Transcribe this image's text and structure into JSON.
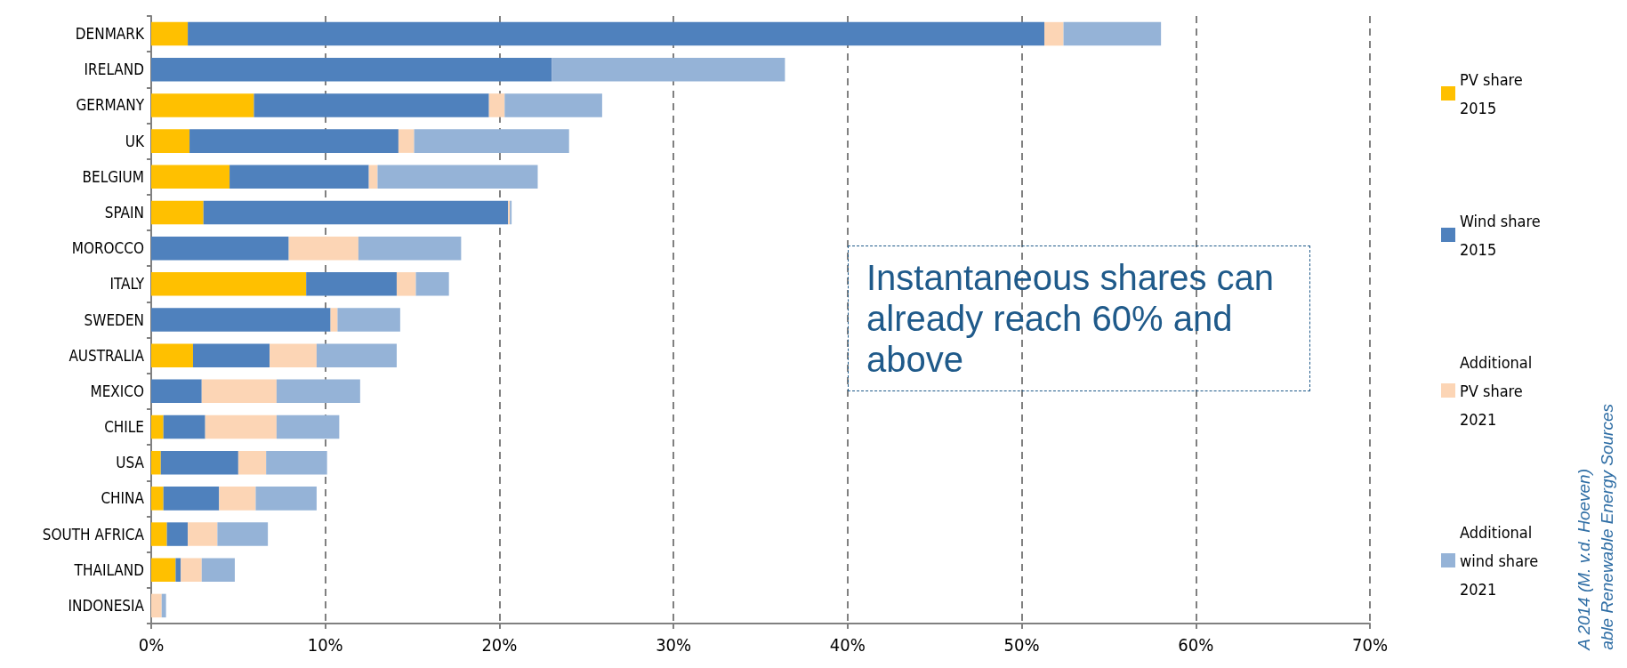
{
  "chart_data": {
    "type": "bar",
    "orientation": "horizontal",
    "stacked": true,
    "categories": [
      "DENMARK",
      "IRELAND",
      "GERMANY",
      "UK",
      "BELGIUM",
      "SPAIN",
      "MOROCCO",
      "ITALY",
      "SWEDEN",
      "AUSTRALIA",
      "MEXICO",
      "CHILE",
      "USA",
      "CHINA",
      "SOUTH AFRICA",
      "THAILAND",
      "INDONESIA"
    ],
    "series": [
      {
        "name": "PV share 2015",
        "color": "#ffc000",
        "values": [
          2.1,
          0,
          5.9,
          2.2,
          4.5,
          3.0,
          0,
          8.9,
          0,
          2.4,
          0,
          0.7,
          0.55,
          0.7,
          0.9,
          1.4,
          0
        ]
      },
      {
        "name": "Wind share 2015",
        "color": "#4f81bd",
        "values": [
          49.2,
          23.0,
          13.5,
          12.0,
          8.0,
          17.5,
          7.9,
          5.2,
          10.3,
          4.4,
          2.9,
          2.4,
          4.45,
          3.2,
          1.2,
          0.3,
          0
        ]
      },
      {
        "name": "Additional PV share 2021",
        "color": "#fcd5b5",
        "values": [
          1.1,
          0,
          0.9,
          0.9,
          0.5,
          0.1,
          4.0,
          1.1,
          0.4,
          2.7,
          4.3,
          4.1,
          1.6,
          2.1,
          1.7,
          1.2,
          0.6
        ]
      },
      {
        "name": "Additional wind share 2021",
        "color": "#95b3d7",
        "values": [
          5.6,
          13.4,
          5.6,
          8.9,
          9.2,
          0.1,
          5.9,
          1.9,
          3.6,
          4.6,
          4.8,
          3.6,
          3.5,
          3.5,
          2.9,
          1.9,
          0.25
        ]
      }
    ],
    "xlim": [
      0,
      70
    ],
    "xticks": [
      {
        "value": 0,
        "label": "0%"
      },
      {
        "value": 10,
        "label": "10%"
      },
      {
        "value": 20,
        "label": "20%"
      },
      {
        "value": 30,
        "label": "30%"
      },
      {
        "value": 40,
        "label": "40%"
      },
      {
        "value": 50,
        "label": "50%"
      },
      {
        "value": 60,
        "label": "60%"
      },
      {
        "value": 70,
        "label": "70%"
      }
    ],
    "grid": "x",
    "legend": "right",
    "annotations": [
      "Instantaneous shares can already reach 60% and above",
      "A 2014 (M. v.d. Hoeven)",
      "able Renewable Energy Sources"
    ]
  }
}
